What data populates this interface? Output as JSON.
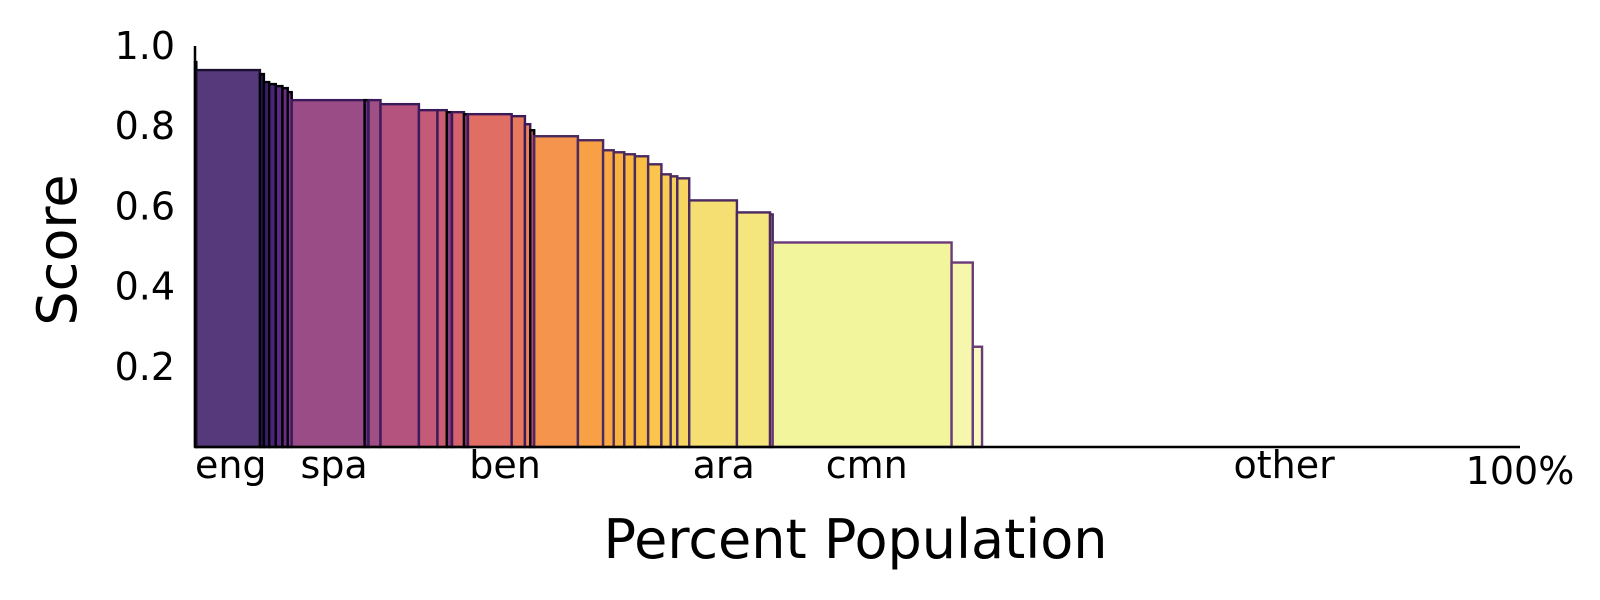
{
  "chart_data": {
    "type": "bar",
    "xlabel": "Percent Population",
    "ylabel": "Score",
    "ylim": [
      0,
      1.0
    ],
    "xlim": [
      0,
      100
    ],
    "yticks": [
      "0.2",
      "0.4",
      "0.6",
      "0.8",
      "1.0"
    ],
    "ytick_values": [
      0.2,
      0.4,
      0.6,
      0.8,
      1.0
    ],
    "xtick_end_label": "100%",
    "category_labels": [
      {
        "label": "eng",
        "x": 2.7
      },
      {
        "label": "spa",
        "x": 10.5
      },
      {
        "label": "ben",
        "x": 23.4
      },
      {
        "label": "ara",
        "x": 39.9
      },
      {
        "label": "cmn",
        "x": 50.7
      },
      {
        "label": "other",
        "x": 82.2
      }
    ],
    "bars": [
      {
        "x0": 0.0,
        "x1": 0.1,
        "value": 0.96,
        "color": "#2a1858",
        "edge": "#000004"
      },
      {
        "x0": 0.1,
        "x1": 4.9,
        "value": 0.94,
        "color": "#56397a",
        "edge": "#1c1030"
      },
      {
        "x0": 4.9,
        "x1": 5.2,
        "value": 0.93,
        "color": "#2a1858",
        "edge": "#000004"
      },
      {
        "x0": 5.2,
        "x1": 5.6,
        "value": 0.91,
        "color": "#3b1e6a",
        "edge": "#000004"
      },
      {
        "x0": 5.6,
        "x1": 6.1,
        "value": 0.905,
        "color": "#4a2478",
        "edge": "#000004"
      },
      {
        "x0": 6.1,
        "x1": 6.6,
        "value": 0.9,
        "color": "#5a2a80",
        "edge": "#000004"
      },
      {
        "x0": 6.6,
        "x1": 7.0,
        "value": 0.895,
        "color": "#6a2f84",
        "edge": "#000004"
      },
      {
        "x0": 7.0,
        "x1": 7.3,
        "value": 0.885,
        "color": "#7a3486",
        "edge": "#000004"
      },
      {
        "x0": 7.3,
        "x1": 12.8,
        "value": 0.865,
        "color": "#9a4c86",
        "edge": "#3a1a5a"
      },
      {
        "x0": 12.8,
        "x1": 13.1,
        "value": 0.865,
        "color": "#6a2f84",
        "edge": "#000004"
      },
      {
        "x0": 13.1,
        "x1": 14.0,
        "value": 0.865,
        "color": "#a04f84",
        "edge": "#3a1a5a"
      },
      {
        "x0": 14.0,
        "x1": 16.9,
        "value": 0.855,
        "color": "#b3537e",
        "edge": "#3a1a5a"
      },
      {
        "x0": 16.9,
        "x1": 18.3,
        "value": 0.84,
        "color": "#c45a78",
        "edge": "#3a1a5a"
      },
      {
        "x0": 18.3,
        "x1": 19.0,
        "value": 0.84,
        "color": "#cc5e72",
        "edge": "#3a1a5a"
      },
      {
        "x0": 19.0,
        "x1": 19.4,
        "value": 0.835,
        "color": "#8a3a7a",
        "edge": "#000004"
      },
      {
        "x0": 19.4,
        "x1": 20.3,
        "value": 0.835,
        "color": "#d6636c",
        "edge": "#3a1a5a"
      },
      {
        "x0": 20.3,
        "x1": 20.6,
        "value": 0.83,
        "color": "#9a3f78",
        "edge": "#000004"
      },
      {
        "x0": 20.6,
        "x1": 23.9,
        "value": 0.83,
        "color": "#e06e64",
        "edge": "#3a1a5a"
      },
      {
        "x0": 23.9,
        "x1": 24.9,
        "value": 0.825,
        "color": "#e8795c",
        "edge": "#3a1a5a"
      },
      {
        "x0": 24.9,
        "x1": 25.3,
        "value": 0.805,
        "color": "#ed8255",
        "edge": "#3a1a5a"
      },
      {
        "x0": 25.3,
        "x1": 25.6,
        "value": 0.79,
        "color": "#b04a6e",
        "edge": "#000004"
      },
      {
        "x0": 25.6,
        "x1": 28.9,
        "value": 0.775,
        "color": "#f5944c",
        "edge": "#4a2a60"
      },
      {
        "x0": 28.9,
        "x1": 30.8,
        "value": 0.765,
        "color": "#f8a045",
        "edge": "#4a2a60"
      },
      {
        "x0": 30.8,
        "x1": 31.6,
        "value": 0.74,
        "color": "#faa942",
        "edge": "#4a2a60"
      },
      {
        "x0": 31.6,
        "x1": 32.4,
        "value": 0.735,
        "color": "#fbb140",
        "edge": "#4a2a60"
      },
      {
        "x0": 32.4,
        "x1": 33.2,
        "value": 0.73,
        "color": "#fbb840",
        "edge": "#4a2a60"
      },
      {
        "x0": 33.2,
        "x1": 34.2,
        "value": 0.725,
        "color": "#fbbe44",
        "edge": "#4a2a60"
      },
      {
        "x0": 34.2,
        "x1": 35.2,
        "value": 0.705,
        "color": "#fac54a",
        "edge": "#4a2a60"
      },
      {
        "x0": 35.2,
        "x1": 35.9,
        "value": 0.68,
        "color": "#f8cb52",
        "edge": "#4a2a60"
      },
      {
        "x0": 35.9,
        "x1": 36.4,
        "value": 0.675,
        "color": "#f7d05a",
        "edge": "#4a2a60"
      },
      {
        "x0": 36.4,
        "x1": 37.3,
        "value": 0.67,
        "color": "#f6d563",
        "edge": "#4a2a60"
      },
      {
        "x0": 37.3,
        "x1": 40.9,
        "value": 0.615,
        "color": "#f5df72",
        "edge": "#4a2a60"
      },
      {
        "x0": 40.9,
        "x1": 43.4,
        "value": 0.585,
        "color": "#f4e57d",
        "edge": "#4a2a60"
      },
      {
        "x0": 43.4,
        "x1": 43.6,
        "value": 0.58,
        "color": "#f4e57d",
        "edge": "#4a2a60"
      },
      {
        "x0": 43.6,
        "x1": 57.1,
        "value": 0.51,
        "color": "#f3f59c",
        "edge": "#6a3a7a"
      },
      {
        "x0": 57.1,
        "x1": 58.7,
        "value": 0.46,
        "color": "#f6f7ad",
        "edge": "#6a3a7a"
      },
      {
        "x0": 58.7,
        "x1": 59.4,
        "value": 0.25,
        "color": "#fafbc0",
        "edge": "#6a3a7a"
      }
    ]
  }
}
